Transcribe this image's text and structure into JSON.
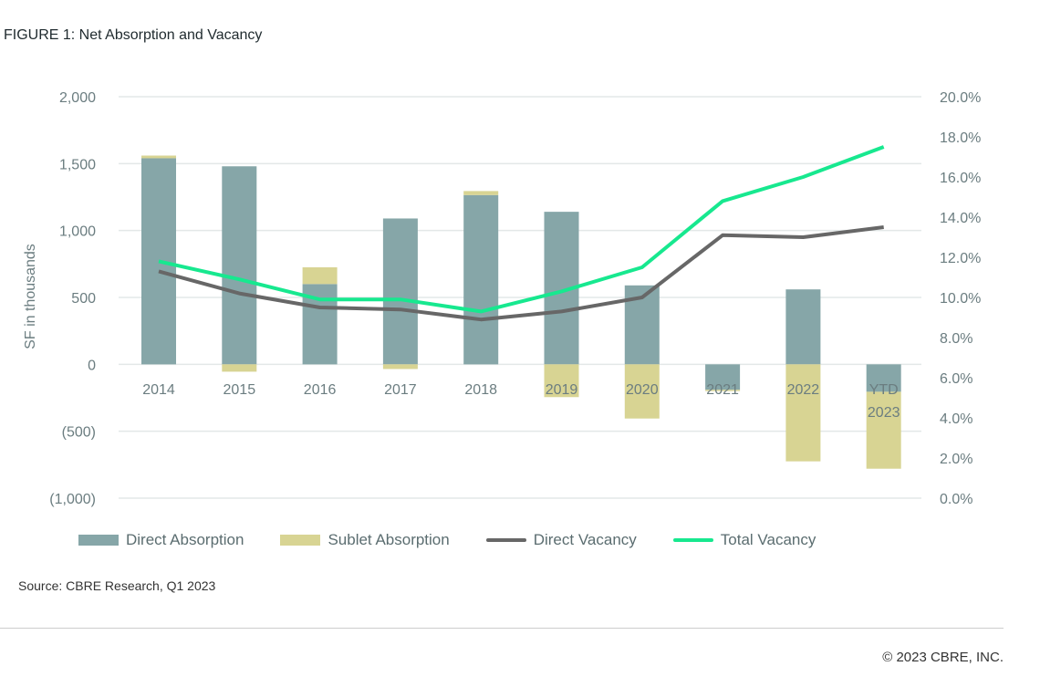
{
  "title": "FIGURE 1: Net Absorption and Vacancy",
  "source": "Source: CBRE Research, Q1 2023",
  "copyright": "© 2023 CBRE, INC.",
  "chart_data": {
    "type": "bar",
    "title": "FIGURE 1: Net Absorption and Vacancy",
    "ylabel": "SF in thousands",
    "ylim": [
      -1000,
      2000
    ],
    "y2lim": [
      0,
      20
    ],
    "y_ticks": [
      "2,000",
      "1,500",
      "1,000",
      "500",
      "0",
      "(500)",
      "(1,000)"
    ],
    "y2_ticks": [
      "20.0%",
      "18.0%",
      "16.0%",
      "14.0%",
      "12.0%",
      "10.0%",
      "8.0%",
      "6.0%",
      "4.0%",
      "2.0%",
      "0.0%"
    ],
    "categories": [
      "2014",
      "2015",
      "2016",
      "2017",
      "2018",
      "2019",
      "2020",
      "2021",
      "2022",
      "YTD 2023"
    ],
    "grid": true,
    "legend_placement": "bottom",
    "series": [
      {
        "name": "Direct Absorption",
        "type": "bar",
        "axis": "left",
        "color": "#86a6a8",
        "values": [
          1540,
          1480,
          600,
          1090,
          1265,
          1140,
          590,
          -190,
          560,
          -205
        ]
      },
      {
        "name": "Sublet Absorption",
        "type": "bar",
        "axis": "left",
        "color": "#d8d493",
        "values": [
          20,
          -55,
          125,
          -35,
          30,
          -245,
          -405,
          -10,
          -725,
          -575
        ]
      },
      {
        "name": "Direct Vacancy",
        "type": "line",
        "axis": "right",
        "color": "#676767",
        "values": [
          11.3,
          10.2,
          9.5,
          9.4,
          8.9,
          9.3,
          10.0,
          13.1,
          13.0,
          13.5
        ]
      },
      {
        "name": "Total Vacancy",
        "type": "line",
        "axis": "right",
        "color": "#17e88f",
        "values": [
          11.8,
          10.9,
          9.9,
          9.9,
          9.3,
          10.3,
          11.5,
          14.8,
          16.0,
          17.5
        ]
      }
    ]
  }
}
